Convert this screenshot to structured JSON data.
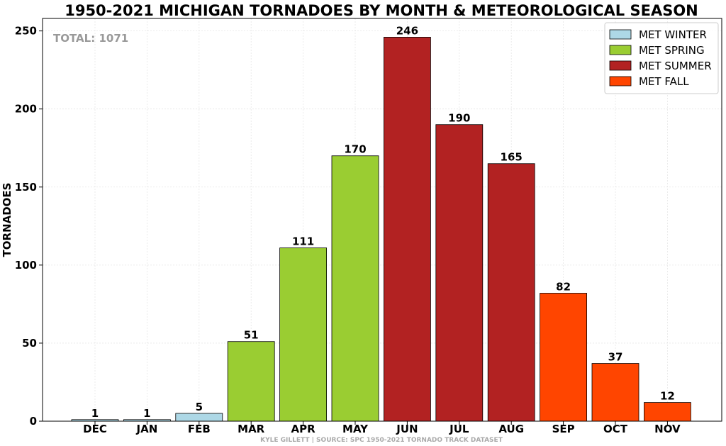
{
  "chart_data": {
    "type": "bar",
    "title": "1950-2021 MICHIGAN TORNADOES BY MONTH & METEOROLOGICAL SEASON",
    "xlabel": "",
    "ylabel": "TORNADOES",
    "ylim": [
      0,
      258
    ],
    "yticks": [
      0,
      50,
      100,
      150,
      200,
      250
    ],
    "grid": true,
    "legend_position": "top-right",
    "categories": [
      "DEC",
      "JAN",
      "FEB",
      "MAR",
      "APR",
      "MAY",
      "JUN",
      "JUL",
      "AUG",
      "SEP",
      "OCT",
      "NOV"
    ],
    "values": [
      1,
      1,
      5,
      51,
      111,
      170,
      246,
      190,
      165,
      82,
      37,
      12
    ],
    "bar_seasons": [
      0,
      0,
      0,
      1,
      1,
      1,
      2,
      2,
      2,
      3,
      3,
      3
    ],
    "seasons": [
      {
        "name": "MET WINTER",
        "color": "#add8e6"
      },
      {
        "name": "MET SPRING",
        "color": "#9acd32"
      },
      {
        "name": "MET SUMMER",
        "color": "#b22222"
      },
      {
        "name": "MET FALL",
        "color": "#ff4500"
      }
    ],
    "annotation": "TOTAL: 1071",
    "credit": "KYLE GILLETT | SOURCE: SPC 1950-2021 TORNADO TRACK DATASET"
  }
}
